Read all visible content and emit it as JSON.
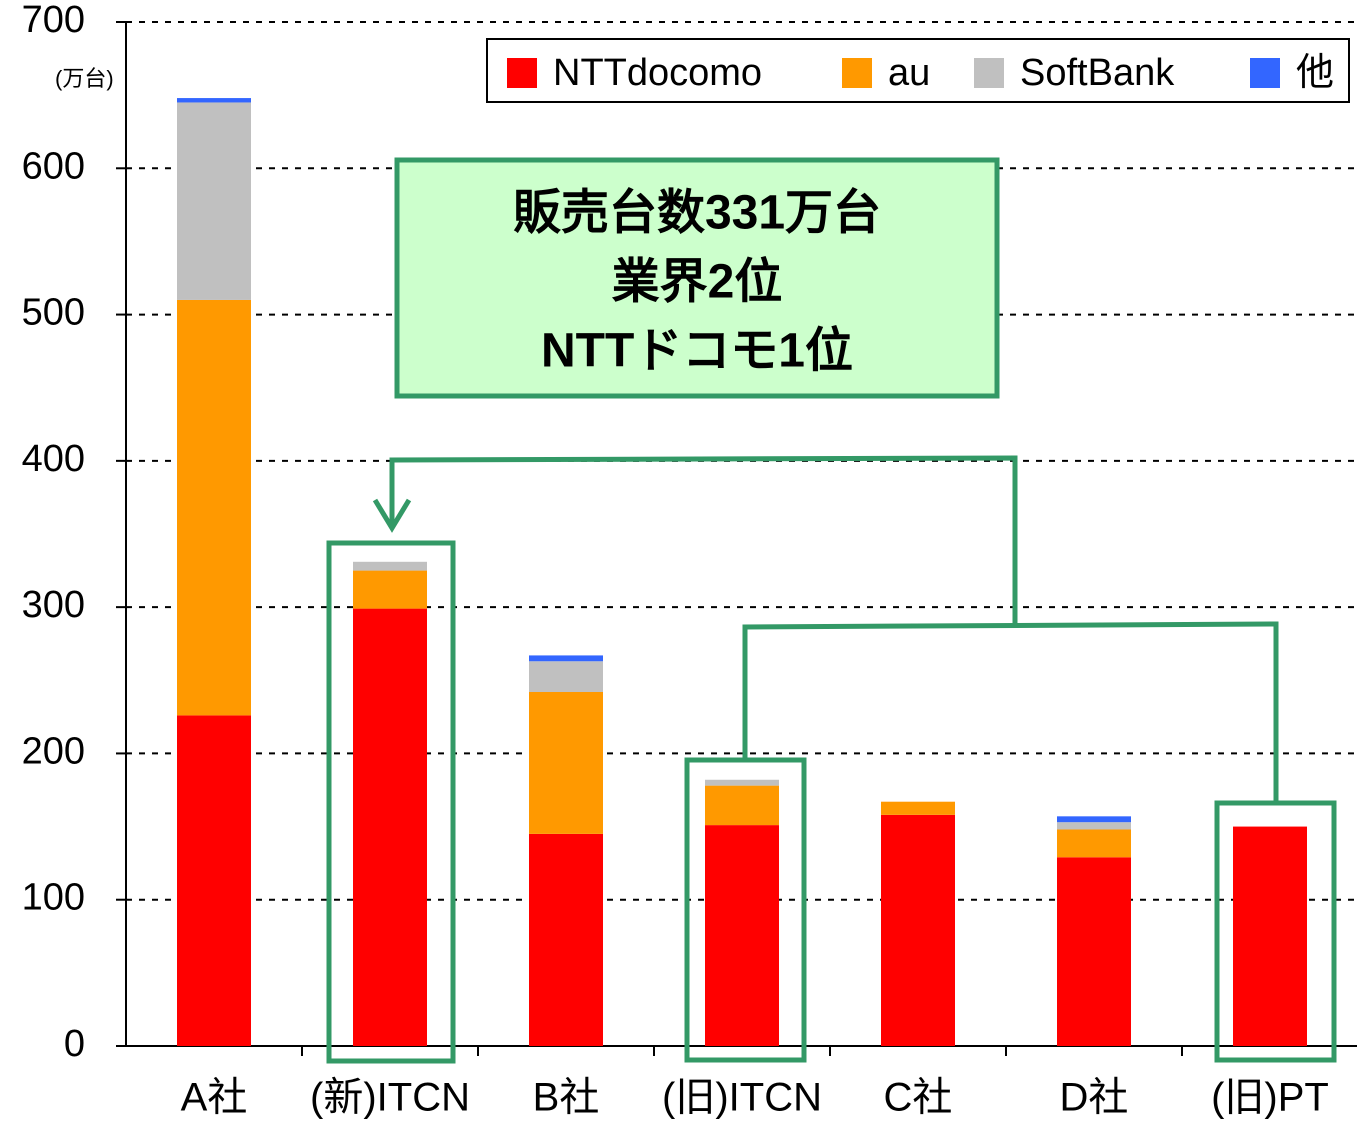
{
  "chart_data": {
    "type": "stacked_bar",
    "y_unit_label": "(万台)",
    "categories": [
      "A社",
      "(新)ITCN",
      "B社",
      "(旧)ITCN",
      "C社",
      "D社",
      "(旧)PT"
    ],
    "series": [
      {
        "name": "NTTdocomo",
        "color": "#ff0000",
        "values": [
          226,
          299,
          145,
          151,
          158,
          129,
          150
        ]
      },
      {
        "name": "au",
        "color": "#ff9900",
        "values": [
          284,
          26,
          97,
          27,
          9,
          19,
          0
        ]
      },
      {
        "name": "SoftBank",
        "color": "#c0c0c0",
        "values": [
          135,
          6,
          21,
          4,
          0,
          5,
          0
        ]
      },
      {
        "name": "他",
        "color": "#3366ff",
        "values": [
          3,
          0,
          4,
          0,
          0,
          4,
          0
        ]
      }
    ],
    "ylim": [
      0,
      700
    ],
    "yticks": [
      0,
      100,
      200,
      300,
      400,
      500,
      600,
      700
    ],
    "grid": true,
    "legend": "top-right",
    "annotation": [
      "販売台数331万台",
      "業界2位",
      "NTTドコモ1位"
    ]
  }
}
